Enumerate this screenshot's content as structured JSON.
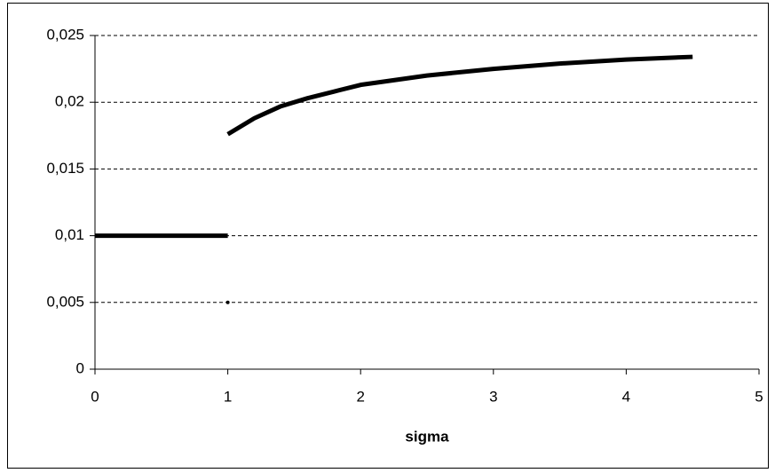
{
  "chart_data": {
    "type": "line",
    "xlabel": "sigma",
    "series": [
      {
        "color": "#000000",
        "style": "line",
        "x": [
          0,
          0.25,
          0.5,
          0.75,
          1
        ],
        "values": [
          0.01,
          0.01,
          0.01,
          0.01,
          0.01
        ]
      },
      {
        "color": "#000000",
        "style": "line",
        "x": [
          1,
          1.2,
          1.4,
          1.6,
          1.8,
          2,
          2.5,
          3,
          3.5,
          4,
          4.5
        ],
        "values": [
          0.0176,
          0.0188,
          0.0197,
          0.0203,
          0.0208,
          0.0213,
          0.022,
          0.0225,
          0.0229,
          0.0232,
          0.0234
        ]
      },
      {
        "color": "#000000",
        "style": "marker",
        "x": [
          1
        ],
        "values": [
          0.005
        ]
      }
    ],
    "xlim": [
      0,
      5
    ],
    "xticks": [
      0,
      1,
      2,
      3,
      4,
      5
    ],
    "ylim": [
      0,
      0.025
    ],
    "yticks": [
      0,
      {
        "value": 0.005,
        "label": "0,005"
      },
      {
        "value": 0.01,
        "label": "0,01"
      },
      {
        "value": 0.015,
        "label": "0,015"
      },
      {
        "value": 0.02,
        "label": "0,02"
      },
      {
        "value": 0.025,
        "label": "0,025"
      }
    ],
    "grid": true
  }
}
